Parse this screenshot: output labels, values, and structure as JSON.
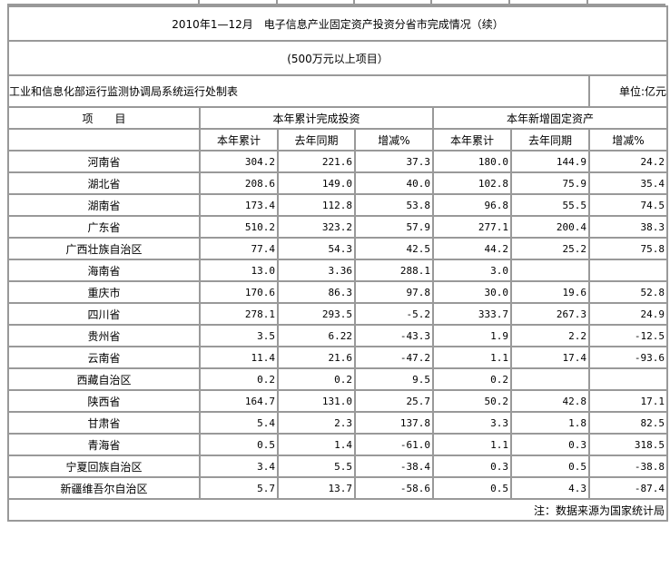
{
  "title": "2010年1—12月　电子信息产业固定资产投资分省市完成情况（续）",
  "subtitle": "(500万元以上项目）",
  "org": "工业和信息化部运行监测协调局系统运行处制表",
  "unit": "单位:亿元",
  "header": {
    "item": "项　　目",
    "group1": "本年累计完成投资",
    "group2": "本年新增固定资产",
    "sub": [
      "本年累计",
      "去年同期",
      "增减%",
      "本年累计",
      "去年同期",
      "增减%"
    ]
  },
  "rows": [
    {
      "name": "河南省",
      "v": [
        "304.2",
        "221.6",
        "37.3",
        "180.0",
        "144.9",
        "24.2"
      ]
    },
    {
      "name": "湖北省",
      "v": [
        "208.6",
        "149.0",
        "40.0",
        "102.8",
        "75.9",
        "35.4"
      ]
    },
    {
      "name": "湖南省",
      "v": [
        "173.4",
        "112.8",
        "53.8",
        "96.8",
        "55.5",
        "74.5"
      ]
    },
    {
      "name": "广东省",
      "v": [
        "510.2",
        "323.2",
        "57.9",
        "277.1",
        "200.4",
        "38.3"
      ]
    },
    {
      "name": "广西壮族自治区",
      "v": [
        "77.4",
        "54.3",
        "42.5",
        "44.2",
        "25.2",
        "75.8"
      ]
    },
    {
      "name": "海南省",
      "v": [
        "13.0",
        "3.36",
        "288.1",
        "3.0",
        "",
        ""
      ]
    },
    {
      "name": "重庆市",
      "v": [
        "170.6",
        "86.3",
        "97.8",
        "30.0",
        "19.6",
        "52.8"
      ]
    },
    {
      "name": "四川省",
      "v": [
        "278.1",
        "293.5",
        "-5.2",
        "333.7",
        "267.3",
        "24.9"
      ]
    },
    {
      "name": "贵州省",
      "v": [
        "3.5",
        "6.22",
        "-43.3",
        "1.9",
        "2.2",
        "-12.5"
      ]
    },
    {
      "name": "云南省",
      "v": [
        "11.4",
        "21.6",
        "-47.2",
        "1.1",
        "17.4",
        "-93.6"
      ]
    },
    {
      "name": "西藏自治区",
      "v": [
        "0.2",
        "0.2",
        "9.5",
        "0.2",
        "",
        ""
      ]
    },
    {
      "name": "陕西省",
      "v": [
        "164.7",
        "131.0",
        "25.7",
        "50.2",
        "42.8",
        "17.1"
      ]
    },
    {
      "name": "甘肃省",
      "v": [
        "5.4",
        "2.3",
        "137.8",
        "3.3",
        "1.8",
        "82.5"
      ]
    },
    {
      "name": "青海省",
      "v": [
        "0.5",
        "1.4",
        "-61.0",
        "1.1",
        "0.3",
        "318.5"
      ]
    },
    {
      "name": "宁夏回族自治区",
      "v": [
        "3.4",
        "5.5",
        "-38.4",
        "0.3",
        "0.5",
        "-38.8"
      ]
    },
    {
      "name": "新疆维吾尔自治区",
      "v": [
        "5.7",
        "13.7",
        "-58.6",
        "0.5",
        "4.3",
        "-87.4"
      ]
    }
  ],
  "footnote": "注：数据来源为国家统计局"
}
